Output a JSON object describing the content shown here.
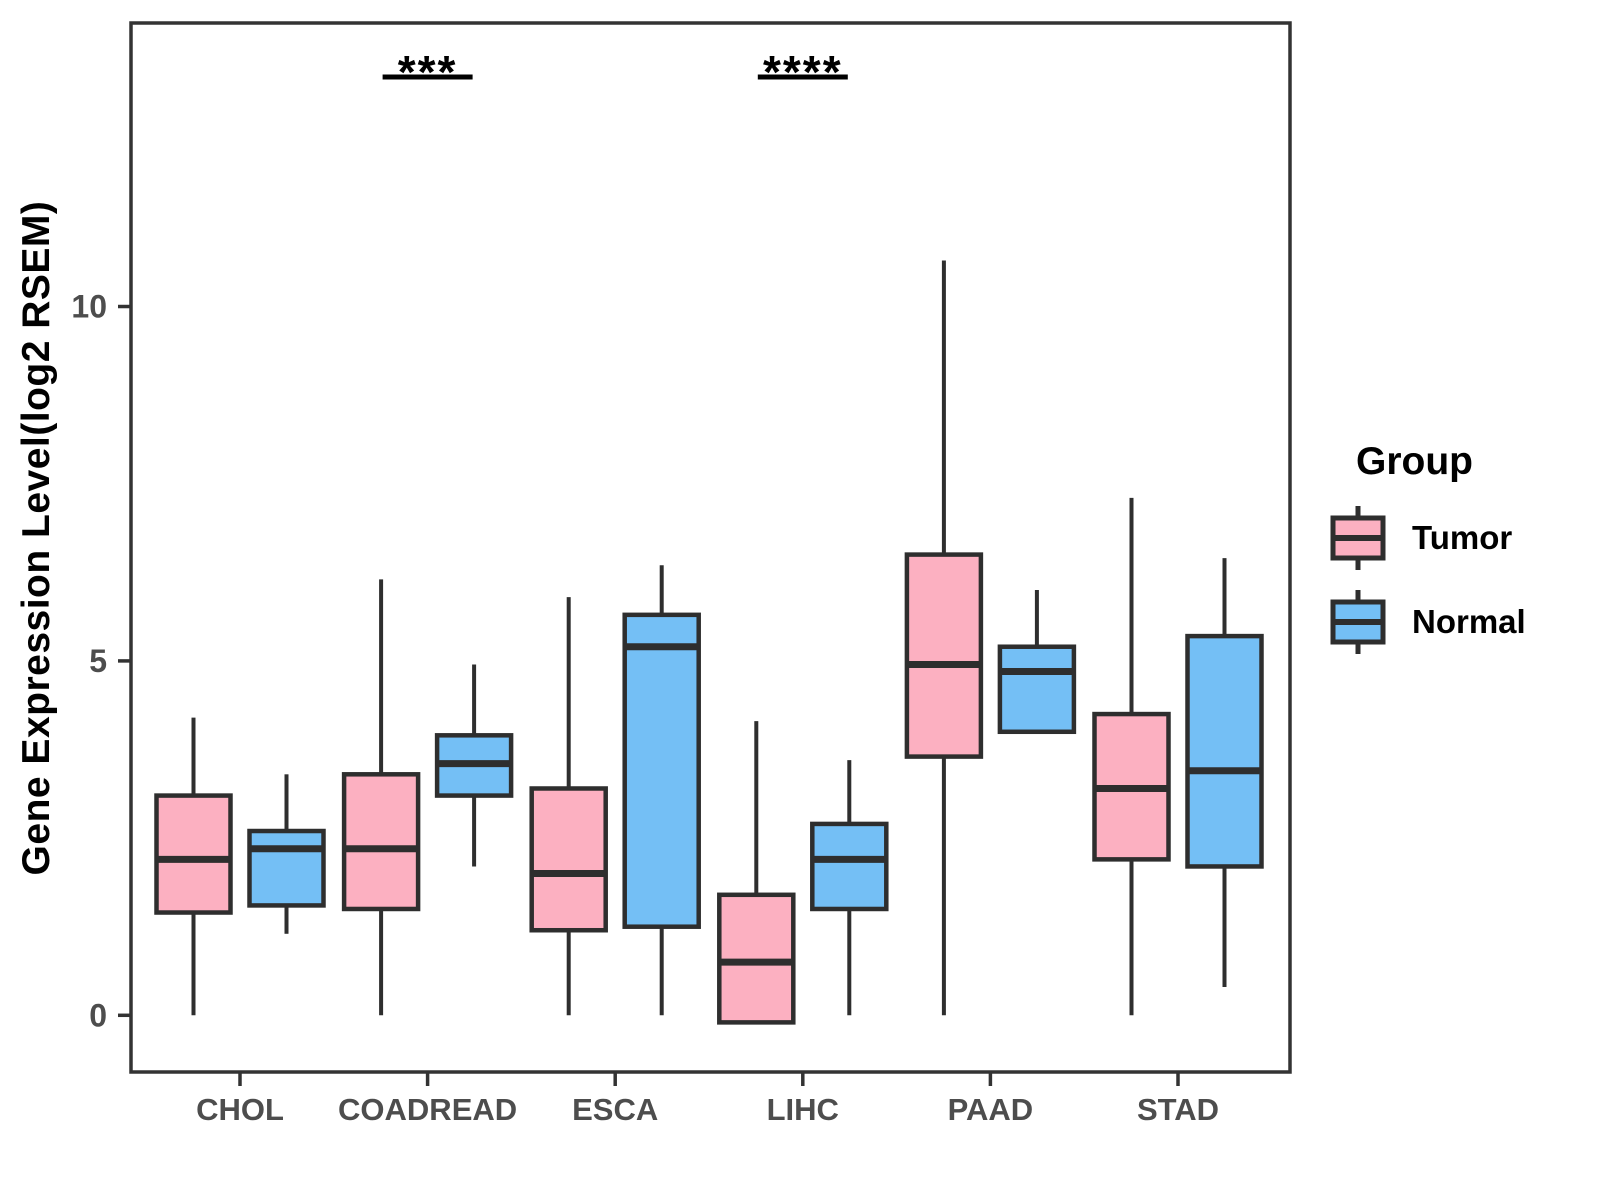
{
  "colors": {
    "tumor_fill": "#FCB0C1",
    "normal_fill": "#74BFF5",
    "box_stroke": "#2E2E2E",
    "panel_border": "#333333",
    "axis_text": "#4D4D4D",
    "annotation": "#000000"
  },
  "chart_data": {
    "type": "boxplot",
    "title": "",
    "xlabel": "",
    "ylabel": "Gene Expression Level(log2 RSEM)",
    "legend_title": "Group",
    "legend_position": "right",
    "grid": false,
    "ylim": [
      -0.8,
      14.0
    ],
    "yticks": [
      0,
      5,
      10
    ],
    "categories": [
      "CHOL",
      "COADREAD",
      "ESCA",
      "LIHC",
      "PAAD",
      "STAD"
    ],
    "series": [
      {
        "name": "Tumor",
        "color": "#FCB0C1",
        "boxes": [
          {
            "min": 0,
            "q1": 1.45,
            "median": 2.2,
            "q3": 3.1,
            "max": 4.2
          },
          {
            "min": 0,
            "q1": 1.5,
            "median": 2.35,
            "q3": 3.4,
            "max": 6.15
          },
          {
            "min": 0,
            "q1": 1.2,
            "median": 2.0,
            "q3": 3.2,
            "max": 5.9
          },
          {
            "min": -0.1,
            "q1": -0.1,
            "median": 0.75,
            "q3": 1.7,
            "max": 4.15
          },
          {
            "min": 0,
            "q1": 3.65,
            "median": 4.95,
            "q3": 6.5,
            "max": 10.65
          },
          {
            "min": 0,
            "q1": 2.2,
            "median": 3.2,
            "q3": 4.25,
            "max": 7.3
          }
        ]
      },
      {
        "name": "Normal",
        "color": "#74BFF5",
        "boxes": [
          {
            "min": 1.15,
            "q1": 1.55,
            "median": 2.35,
            "q3": 2.6,
            "max": 3.4
          },
          {
            "min": 2.1,
            "q1": 3.1,
            "median": 3.55,
            "q3": 3.95,
            "max": 4.95
          },
          {
            "min": 0,
            "q1": 1.25,
            "median": 5.2,
            "q3": 5.65,
            "max": 6.35
          },
          {
            "min": 0,
            "q1": 1.5,
            "median": 2.2,
            "q3": 2.7,
            "max": 3.6
          },
          {
            "min": 4.0,
            "q1": 4.0,
            "median": 4.85,
            "q3": 5.2,
            "max": 6.0
          },
          {
            "min": 0.4,
            "q1": 2.1,
            "median": 3.45,
            "q3": 5.35,
            "max": 6.45
          }
        ]
      }
    ],
    "annotations": [
      {
        "category": "COADREAD",
        "label": "***"
      },
      {
        "category": "LIHC",
        "label": "****"
      }
    ]
  }
}
